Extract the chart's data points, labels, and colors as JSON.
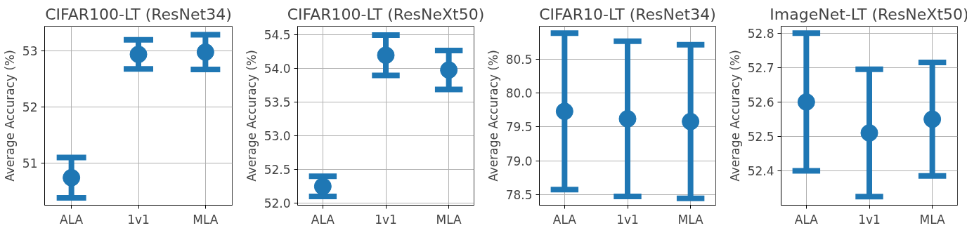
{
  "chart_data": [
    {
      "type": "scatter",
      "title": "CIFAR100-LT (ResNet34)",
      "ylabel": "Average Accuracy (%)",
      "categories": [
        "ALA",
        "1v1",
        "MLA"
      ],
      "marker": "circle",
      "grid": true,
      "series": [
        {
          "color": "#1f77b4",
          "values": [
            50.74,
            52.94,
            52.98
          ],
          "errors": [
            0.36,
            0.26,
            0.31
          ]
        }
      ],
      "ylim": [
        50.25,
        53.44
      ],
      "yticks": [
        51,
        52,
        53
      ]
    },
    {
      "type": "scatter",
      "title": "CIFAR100-LT (ResNeXt50)",
      "ylabel": "Average Accuracy (%)",
      "categories": [
        "ALA",
        "1v1",
        "MLA"
      ],
      "marker": "circle",
      "grid": true,
      "series": [
        {
          "color": "#1f77b4",
          "values": [
            52.25,
            54.2,
            53.98
          ],
          "errors": [
            0.15,
            0.3,
            0.29
          ]
        }
      ],
      "ylim": [
        51.97,
        54.63
      ],
      "yticks": [
        {
          "value": 52,
          "label": "52.0"
        },
        52.5,
        {
          "value": 53,
          "label": "53.0"
        },
        53.5,
        {
          "value": 54,
          "label": "54.0"
        },
        54.5
      ]
    },
    {
      "type": "scatter",
      "title": "CIFAR10-LT (ResNet34)",
      "ylabel": "Average Accuracy (%)",
      "categories": [
        "ALA",
        "1v1",
        "MLA"
      ],
      "marker": "circle",
      "grid": true,
      "series": [
        {
          "color": "#1f77b4",
          "values": [
            79.73,
            79.62,
            79.58
          ],
          "errors": [
            1.15,
            1.14,
            1.13
          ]
        }
      ],
      "ylim": [
        78.35,
        80.98
      ],
      "yticks": [
        78.5,
        {
          "value": 79,
          "label": "79.0"
        },
        79.5,
        {
          "value": 80,
          "label": "80.0"
        },
        80.5
      ]
    },
    {
      "type": "scatter",
      "title": "ImageNet-LT (ResNeXt50)",
      "ylabel": "Average Accuracy (%)",
      "categories": [
        "ALA",
        "1v1",
        "MLA"
      ],
      "marker": "circle",
      "grid": true,
      "series": [
        {
          "color": "#1f77b4",
          "values": [
            52.6,
            52.51,
            52.55
          ],
          "errors": [
            0.2,
            0.185,
            0.165
          ]
        }
      ],
      "ylim": [
        52.3,
        52.82
      ],
      "yticks": [
        52.4,
        52.5,
        52.6,
        52.7,
        52.8
      ]
    }
  ]
}
